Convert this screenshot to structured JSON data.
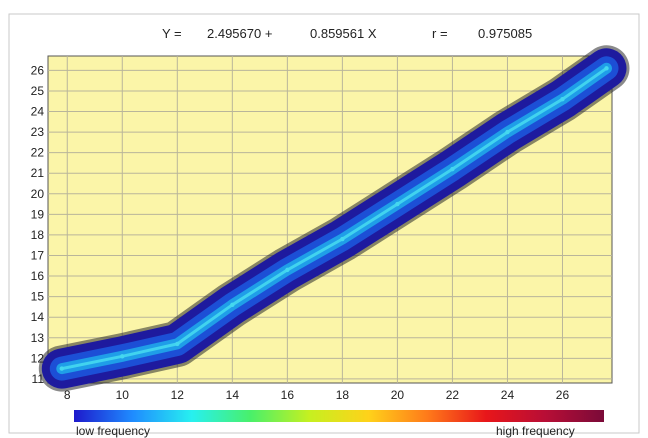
{
  "equation": {
    "y_label": "Y =",
    "intercept": "2.495670 +",
    "slope": "0.859561 X",
    "r_label": "r =",
    "r_value": "0.975085"
  },
  "colors": {
    "plot_background": "#fbf5a8",
    "grid": "#b9b59a",
    "band_outer": "#1e1a9e",
    "band_mid": "#1c4fd6",
    "band_inner": "#1f9ee8",
    "band_core": "#45d8ef",
    "outline": "#2a2a2a"
  },
  "chart_data": {
    "type": "heatmap",
    "subtype": "density scatter",
    "title": "",
    "xlabel": "",
    "ylabel": "",
    "xlim": [
      7.3,
      27.8
    ],
    "ylim": [
      10.8,
      26.7
    ],
    "x_ticks": [
      8,
      10,
      12,
      14,
      16,
      18,
      20,
      22,
      24,
      26
    ],
    "y_ticks": [
      11,
      12,
      13,
      14,
      15,
      16,
      17,
      18,
      19,
      20,
      21,
      22,
      23,
      24,
      25,
      26
    ],
    "grid": true,
    "regression": {
      "intercept": 2.49567,
      "slope": 0.859561,
      "r": 0.975085
    },
    "ridge": [
      {
        "x": 7.8,
        "y": 11.5
      },
      {
        "x": 10.0,
        "y": 12.1
      },
      {
        "x": 12.0,
        "y": 12.7
      },
      {
        "x": 14.0,
        "y": 14.6
      },
      {
        "x": 16.0,
        "y": 16.3
      },
      {
        "x": 18.0,
        "y": 17.8
      },
      {
        "x": 20.0,
        "y": 19.5
      },
      {
        "x": 22.0,
        "y": 21.2
      },
      {
        "x": 24.0,
        "y": 23.0
      },
      {
        "x": 26.0,
        "y": 24.6
      },
      {
        "x": 27.6,
        "y": 26.1
      }
    ],
    "colorbar": {
      "colors": [
        "#1e1acc",
        "#1f8cff",
        "#27f0f0",
        "#49f06a",
        "#c6f020",
        "#ffd21a",
        "#ff7a1a",
        "#e8161a",
        "#b80e36",
        "#7a0a38"
      ],
      "low_label": "low frequency",
      "high_label": "high frequency"
    }
  }
}
